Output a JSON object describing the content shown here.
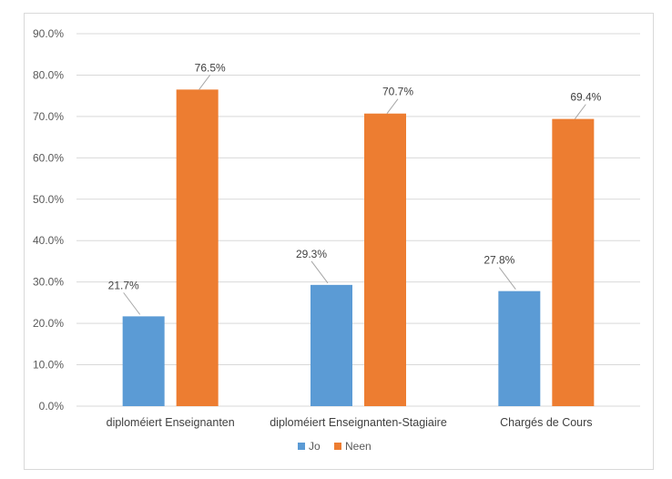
{
  "chart_data": {
    "type": "bar",
    "categories": [
      "diploméiert Enseignanten",
      "diploméiert Enseignanten-Stagiaire",
      "Chargés de Cours"
    ],
    "series": [
      {
        "name": "Jo",
        "values": [
          21.7,
          29.3,
          27.8
        ],
        "labels": [
          "21.7%",
          "29.3%",
          "27.8%"
        ],
        "color": "#5b9bd5"
      },
      {
        "name": "Neen",
        "values": [
          76.5,
          70.7,
          69.4
        ],
        "labels": [
          "76.5%",
          "70.7%",
          "69.4%"
        ],
        "color": "#ed7d31"
      }
    ],
    "y_ticks": [
      "0.0%",
      "10.0%",
      "20.0%",
      "30.0%",
      "40.0%",
      "50.0%",
      "60.0%",
      "70.0%",
      "80.0%",
      "90.0%"
    ],
    "ylim": [
      0,
      90
    ],
    "grid": true,
    "legend_position": "bottom",
    "title": "",
    "xlabel": "",
    "ylabel": "",
    "gridline_color": "#d9d9d9",
    "leader_line_color": "#a6a6a6"
  }
}
